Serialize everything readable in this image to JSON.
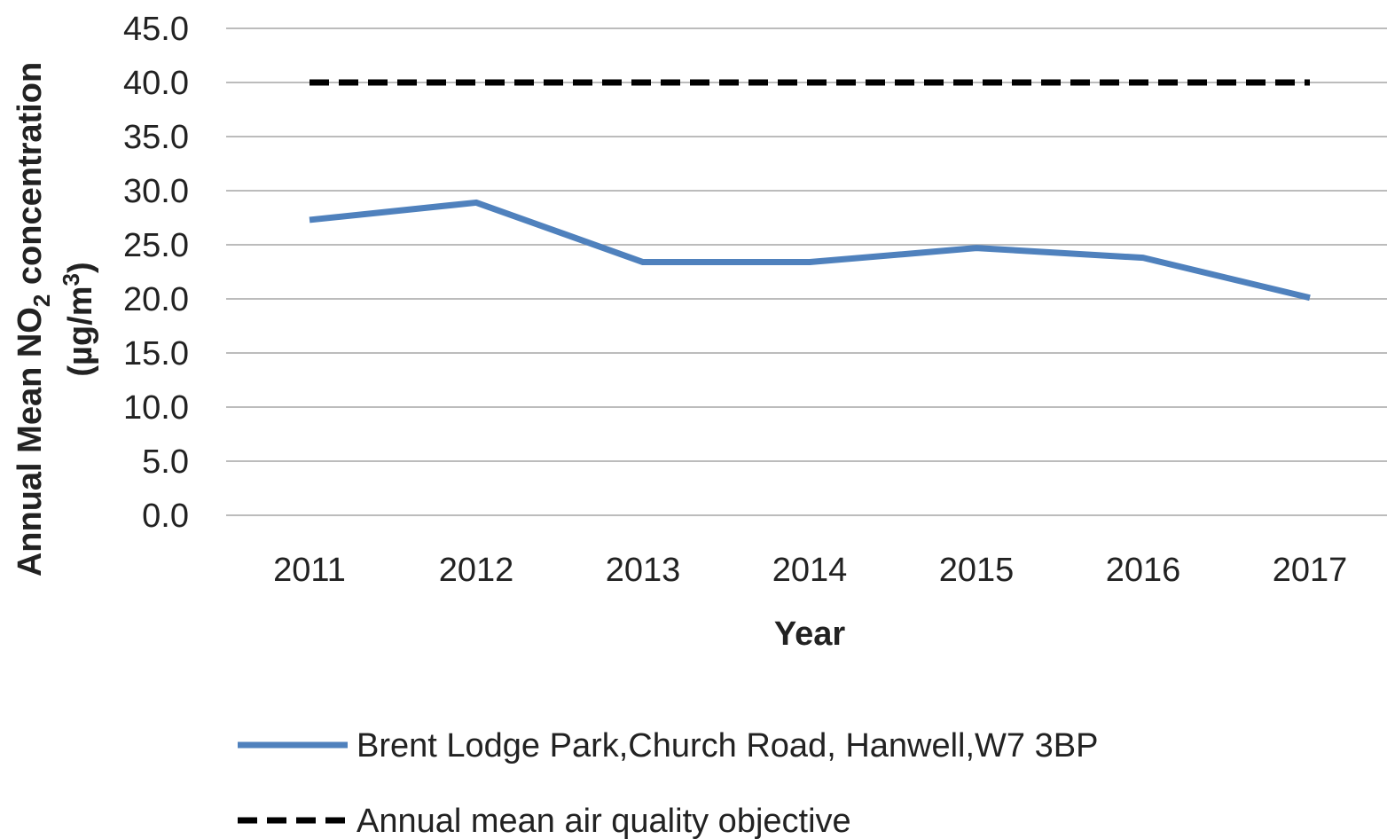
{
  "chart_data": {
    "type": "line",
    "title": "",
    "xlabel": "Year",
    "ylabel": {
      "prefix": "Annual Mean NO",
      "subscript": "2",
      "suffix": " concentration",
      "unit_prefix": "(µg/m",
      "unit_superscript": "3",
      "unit_suffix": ")"
    },
    "ylim": [
      0,
      45
    ],
    "yticks": [
      "0.0",
      "5.0",
      "10.0",
      "15.0",
      "20.0",
      "25.0",
      "30.0",
      "35.0",
      "40.0",
      "45.0"
    ],
    "ytick_values": [
      0,
      5,
      10,
      15,
      20,
      25,
      30,
      35,
      40,
      45
    ],
    "categories": [
      "2011",
      "2012",
      "2013",
      "2014",
      "2015",
      "2016",
      "2017"
    ],
    "grid": true,
    "legend_position": "bottom",
    "series": [
      {
        "name": "Brent Lodge Park,Church Road, Hanwell,W7 3BP",
        "values": [
          27.3,
          28.9,
          23.4,
          23.4,
          24.7,
          23.8,
          20.1
        ],
        "color": "#4f81bd",
        "style": "solid"
      },
      {
        "name": "Annual mean air quality objective",
        "values": [
          40,
          40,
          40,
          40,
          40,
          40,
          40
        ],
        "color": "#000000",
        "style": "dashed"
      }
    ]
  }
}
